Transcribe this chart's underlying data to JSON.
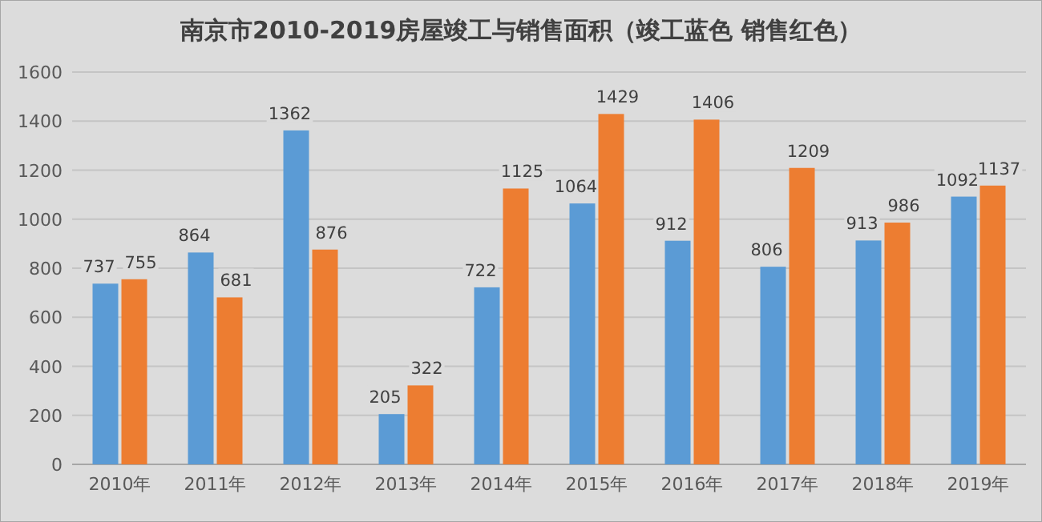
{
  "chart_data": {
    "type": "bar",
    "title": "南京市2010-2019房屋竣工与销售面积（竣工蓝色 销售红色）",
    "categories": [
      "2010年",
      "2011年",
      "2012年",
      "2013年",
      "2014年",
      "2015年",
      "2016年",
      "2017年",
      "2018年",
      "2019年"
    ],
    "series": [
      {
        "color": "#5b9bd5",
        "values": [
          737,
          864,
          1362,
          205,
          722,
          1064,
          912,
          806,
          913,
          1092
        ]
      },
      {
        "color": "#ed7d31",
        "values": [
          755,
          681,
          876,
          322,
          1125,
          1429,
          1406,
          1209,
          986,
          1137
        ]
      }
    ],
    "ylim": [
      0,
      1600
    ],
    "yticks": [
      0,
      200,
      400,
      600,
      800,
      1000,
      1200,
      1400,
      1600
    ],
    "grid": "y",
    "data_labels": true
  }
}
